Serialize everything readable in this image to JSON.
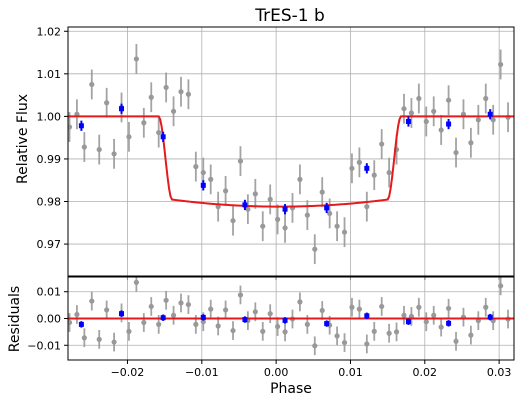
{
  "chart_data": [
    {
      "type": "scatter",
      "title": "TrES-1 b",
      "xlabel": "",
      "ylabel": "Relative Flux",
      "xlim": [
        -0.028,
        0.032
      ],
      "ylim": [
        0.9625,
        1.021
      ],
      "grid": true,
      "x_ticks": [
        -0.02,
        -0.01,
        0.0,
        0.01,
        0.02,
        0.03
      ],
      "y_ticks": [
        0.97,
        0.98,
        0.99,
        1.0,
        1.01,
        1.02
      ],
      "y_tick_labels": [
        "0.97",
        "0.98",
        "0.99",
        "1.00",
        "1.01",
        "1.02"
      ],
      "colors": {
        "raw": "#999999",
        "binned": "#0000ff",
        "model": "#e41a1c"
      },
      "series": [
        {
          "kind": "raw",
          "points": [
            [
              -0.0278,
              0.9975,
              0.0035
            ],
            [
              -0.0268,
              1.0005,
              0.0035
            ],
            [
              -0.0258,
              0.9928,
              0.0035
            ],
            [
              -0.0248,
              1.0075,
              0.0035
            ],
            [
              -0.0238,
              0.9922,
              0.0035
            ],
            [
              -0.0228,
              1.0032,
              0.0035
            ],
            [
              -0.0218,
              0.9912,
              0.0035
            ],
            [
              -0.0208,
              1.0021,
              0.0035
            ],
            [
              -0.0198,
              0.9952,
              0.0035
            ],
            [
              -0.0188,
              1.0135,
              0.0035
            ],
            [
              -0.0178,
              0.9985,
              0.0035
            ],
            [
              -0.0168,
              1.0045,
              0.0035
            ],
            [
              -0.0158,
              0.9962,
              0.0035
            ],
            [
              -0.0148,
              1.0068,
              0.0035
            ],
            [
              -0.0138,
              1.0012,
              0.0035
            ],
            [
              -0.0128,
              1.0058,
              0.0035
            ],
            [
              -0.0118,
              1.0052,
              0.0035
            ],
            [
              -0.0108,
              0.9882,
              0.0035
            ],
            [
              -0.0098,
              0.9868,
              0.0035
            ],
            [
              -0.0088,
              0.9852,
              0.0035
            ],
            [
              -0.0078,
              0.9788,
              0.0035
            ],
            [
              -0.0068,
              0.9825,
              0.0035
            ],
            [
              -0.0058,
              0.9755,
              0.0035
            ],
            [
              -0.0048,
              0.9895,
              0.0035
            ],
            [
              -0.0038,
              0.9782,
              0.0035
            ],
            [
              -0.0028,
              0.9818,
              0.0035
            ],
            [
              -0.0018,
              0.9742,
              0.0035
            ],
            [
              -0.0008,
              0.9805,
              0.0035
            ],
            [
              0.0002,
              0.9758,
              0.0035
            ],
            [
              0.0012,
              0.9738,
              0.0035
            ],
            [
              0.0022,
              0.9785,
              0.0035
            ],
            [
              0.0032,
              0.9852,
              0.0035
            ],
            [
              0.0042,
              0.9768,
              0.0035
            ],
            [
              0.0052,
              0.9688,
              0.0035
            ],
            [
              0.0062,
              0.9822,
              0.0035
            ],
            [
              0.0072,
              0.9772,
              0.0035
            ],
            [
              0.0082,
              0.9742,
              0.0035
            ],
            [
              0.0092,
              0.9728,
              0.0035
            ],
            [
              0.0102,
              0.9878,
              0.0035
            ],
            [
              0.0112,
              0.9892,
              0.0035
            ],
            [
              0.0122,
              0.9788,
              0.0035
            ],
            [
              0.0132,
              0.9862,
              0.0035
            ],
            [
              0.0142,
              0.9935,
              0.0035
            ],
            [
              0.0152,
              0.9868,
              0.0035
            ],
            [
              0.0162,
              0.9922,
              0.0035
            ],
            [
              0.0172,
              1.0018,
              0.0035
            ],
            [
              0.0182,
              1.0008,
              0.0035
            ],
            [
              0.0192,
              1.0042,
              0.0035
            ],
            [
              0.0202,
              0.9988,
              0.0035
            ],
            [
              0.0212,
              1.0012,
              0.0035
            ],
            [
              0.0222,
              0.9968,
              0.0035
            ],
            [
              0.0232,
              1.0038,
              0.0035
            ],
            [
              0.0242,
              0.9915,
              0.0035
            ],
            [
              0.0252,
              1.0005,
              0.0035
            ],
            [
              0.0262,
              0.9938,
              0.0035
            ],
            [
              0.0272,
              0.9992,
              0.0035
            ],
            [
              0.0282,
              1.0042,
              0.0035
            ],
            [
              0.0292,
              0.9992,
              0.0035
            ],
            [
              0.0302,
              1.0122,
              0.0035
            ],
            [
              0.0312,
              0.9998,
              0.0035
            ]
          ]
        },
        {
          "kind": "binned",
          "points": [
            [
              -0.0262,
              0.9978,
              0.0012
            ],
            [
              -0.0208,
              1.0018,
              0.0012
            ],
            [
              -0.0152,
              0.9952,
              0.0012
            ],
            [
              -0.0098,
              0.9838,
              0.0012
            ],
            [
              -0.0042,
              0.9792,
              0.0012
            ],
            [
              0.0012,
              0.9782,
              0.0012
            ],
            [
              0.0068,
              0.9785,
              0.0012
            ],
            [
              0.0122,
              0.9878,
              0.0012
            ],
            [
              0.0178,
              0.9988,
              0.0012
            ],
            [
              0.0232,
              0.9982,
              0.0012
            ],
            [
              0.0288,
              1.0005,
              0.0012
            ]
          ]
        },
        {
          "kind": "model",
          "transit": {
            "center": 0.0005,
            "half_width": 0.0163,
            "depth": 0.0212,
            "ingress": 0.0018,
            "curvature": 0.0021
          }
        }
      ]
    },
    {
      "type": "scatter",
      "title": "",
      "xlabel": "Phase",
      "ylabel": "Residuals",
      "xlim": [
        -0.028,
        0.032
      ],
      "ylim": [
        -0.0155,
        0.0155
      ],
      "grid": true,
      "x_ticks": [
        -0.02,
        -0.01,
        0.0,
        0.01,
        0.02,
        0.03
      ],
      "x_tick_labels": [
        "−0.02",
        "−0.01",
        "0.00",
        "0.01",
        "0.02",
        "0.03"
      ],
      "y_ticks": [
        -0.01,
        0.0,
        0.01
      ],
      "y_tick_labels": [
        "−0.01",
        "0.00",
        "0.01"
      ],
      "series": [
        {
          "kind": "raw",
          "points": [
            [
              -0.0278,
              -0.0015,
              0.0035
            ],
            [
              -0.0268,
              0.0015,
              0.0035
            ],
            [
              -0.0258,
              -0.0072,
              0.0035
            ],
            [
              -0.0248,
              0.0065,
              0.0035
            ],
            [
              -0.0238,
              -0.0078,
              0.0035
            ],
            [
              -0.0228,
              0.0032,
              0.0035
            ],
            [
              -0.0218,
              -0.0088,
              0.0035
            ],
            [
              -0.0208,
              0.0021,
              0.0035
            ],
            [
              -0.0198,
              -0.0048,
              0.0035
            ],
            [
              -0.0188,
              0.0135,
              0.0035
            ],
            [
              -0.0178,
              -0.0015,
              0.0035
            ],
            [
              -0.0168,
              0.0045,
              0.0035
            ],
            [
              -0.0158,
              -0.0022,
              0.0035
            ],
            [
              -0.0148,
              0.0068,
              0.0035
            ],
            [
              -0.0138,
              0.0012,
              0.0035
            ],
            [
              -0.0128,
              0.0058,
              0.0035
            ],
            [
              -0.0118,
              0.0052,
              0.0035
            ],
            [
              -0.0108,
              -0.0022,
              0.0035
            ],
            [
              -0.0098,
              -0.0012,
              0.0035
            ],
            [
              -0.0088,
              0.0035,
              0.0035
            ],
            [
              -0.0078,
              -0.0028,
              0.0035
            ],
            [
              -0.0068,
              0.0032,
              0.0035
            ],
            [
              -0.0058,
              -0.0045,
              0.0035
            ],
            [
              -0.0048,
              0.0088,
              0.0035
            ],
            [
              -0.0038,
              -0.0008,
              0.0035
            ],
            [
              -0.0028,
              0.0025,
              0.0035
            ],
            [
              -0.0018,
              -0.0048,
              0.0035
            ],
            [
              -0.0008,
              0.0018,
              0.0035
            ],
            [
              0.0002,
              -0.003,
              0.0035
            ],
            [
              0.0012,
              -0.005,
              0.0035
            ],
            [
              0.0022,
              -0.0002,
              0.0035
            ],
            [
              0.0032,
              0.0062,
              0.0035
            ],
            [
              0.0042,
              -0.0022,
              0.0035
            ],
            [
              0.0052,
              -0.0102,
              0.0035
            ],
            [
              0.0062,
              0.003,
              0.0035
            ],
            [
              0.0072,
              -0.0025,
              0.0035
            ],
            [
              0.0082,
              -0.0065,
              0.0035
            ],
            [
              0.0092,
              -0.009,
              0.0035
            ],
            [
              0.0102,
              0.0042,
              0.0035
            ],
            [
              0.0112,
              0.0035,
              0.0035
            ],
            [
              0.0122,
              -0.0095,
              0.0035
            ],
            [
              0.0132,
              -0.0048,
              0.0035
            ],
            [
              0.0142,
              0.0045,
              0.0035
            ],
            [
              0.0152,
              -0.0055,
              0.0035
            ],
            [
              0.0162,
              -0.005,
              0.0035
            ],
            [
              0.0172,
              0.0012,
              0.0035
            ],
            [
              0.0182,
              0.0008,
              0.0035
            ],
            [
              0.0192,
              0.0042,
              0.0035
            ],
            [
              0.0202,
              -0.0012,
              0.0035
            ],
            [
              0.0212,
              0.0012,
              0.0035
            ],
            [
              0.0222,
              -0.0032,
              0.0035
            ],
            [
              0.0232,
              0.0038,
              0.0035
            ],
            [
              0.0242,
              -0.0085,
              0.0035
            ],
            [
              0.0252,
              0.0005,
              0.0035
            ],
            [
              0.0262,
              -0.0062,
              0.0035
            ],
            [
              0.0272,
              -0.0008,
              0.0035
            ],
            [
              0.0282,
              0.0042,
              0.0035
            ],
            [
              0.0292,
              -0.0008,
              0.0035
            ],
            [
              0.0302,
              0.0122,
              0.0035
            ],
            [
              0.0312,
              -0.0002,
              0.0035
            ]
          ]
        },
        {
          "kind": "binned",
          "points": [
            [
              -0.0262,
              -0.0022,
              0.0012
            ],
            [
              -0.0208,
              0.0018,
              0.0012
            ],
            [
              -0.0152,
              0.0003,
              0.0012
            ],
            [
              -0.0098,
              0.0004,
              0.0012
            ],
            [
              -0.0042,
              -0.0004,
              0.0012
            ],
            [
              0.0012,
              -0.0007,
              0.0012
            ],
            [
              0.0068,
              -0.0019,
              0.0012
            ],
            [
              0.0122,
              0.001,
              0.0012
            ],
            [
              0.0178,
              -0.0012,
              0.0012
            ],
            [
              0.0232,
              -0.0018,
              0.0012
            ],
            [
              0.0288,
              0.0005,
              0.0012
            ]
          ]
        },
        {
          "kind": "model",
          "constant": 0.0
        }
      ]
    }
  ]
}
